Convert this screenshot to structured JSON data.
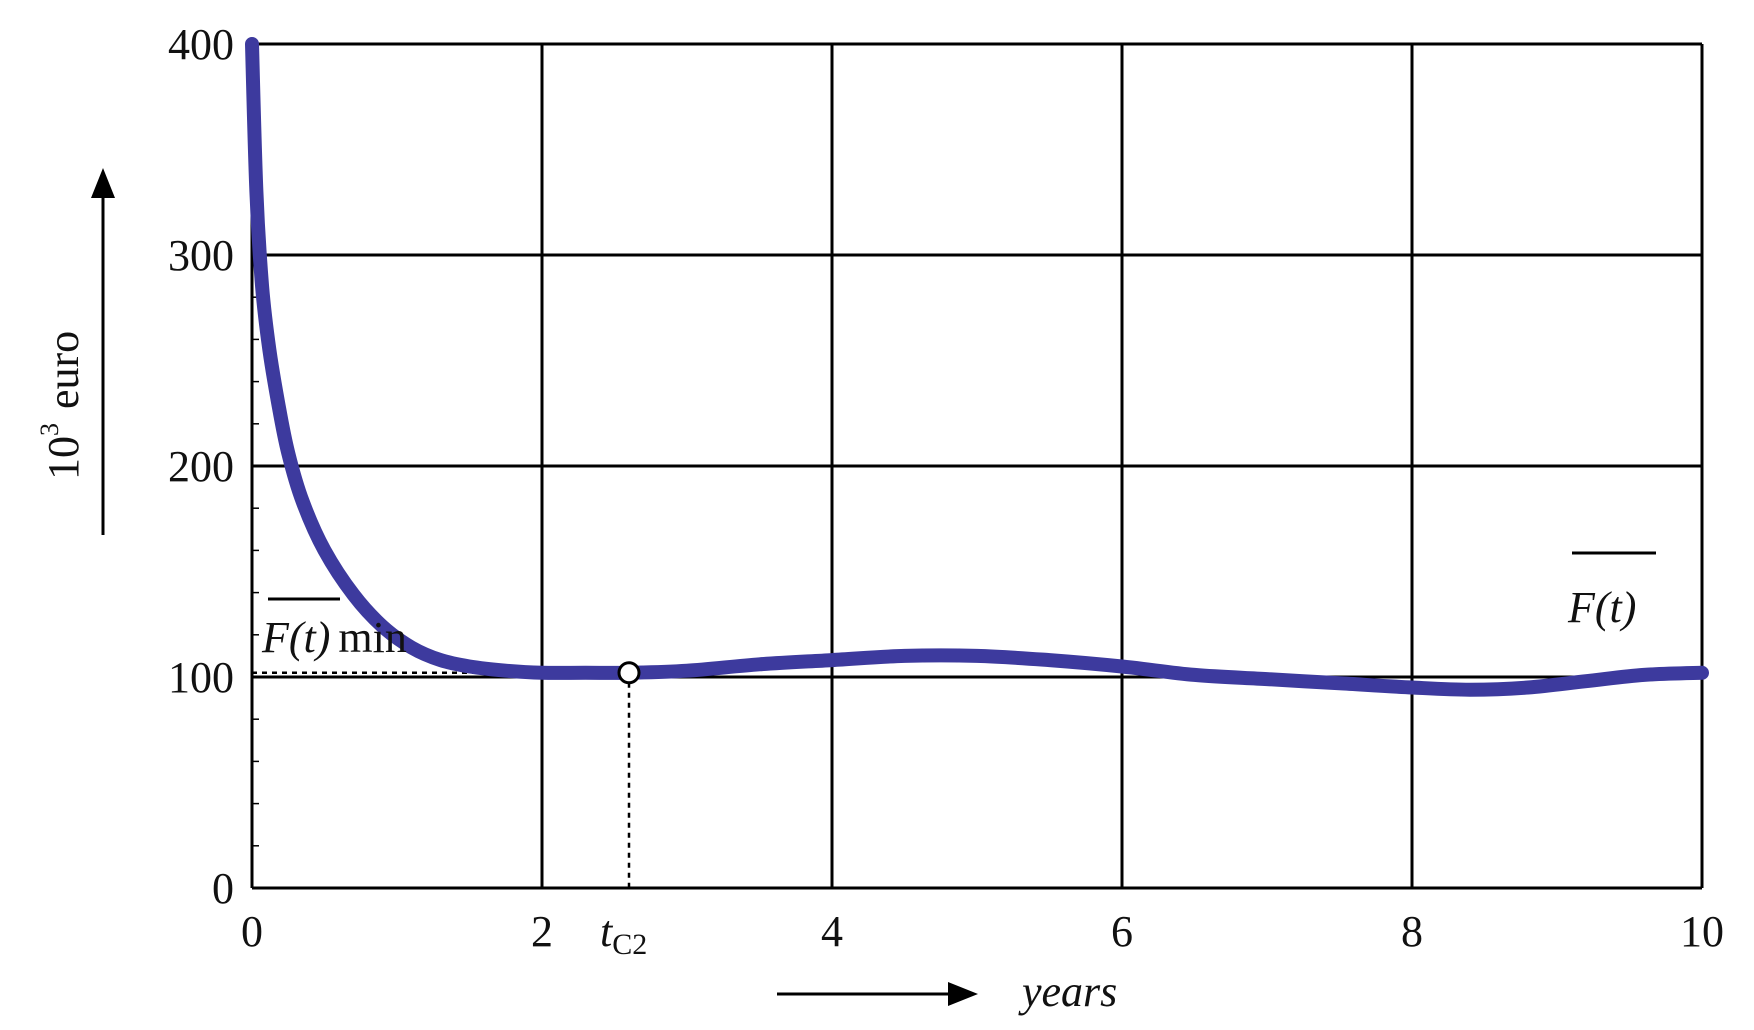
{
  "chart_data": {
    "type": "line",
    "xlabel": "years",
    "ylabel_main": "10",
    "ylabel_exp": "3",
    "ylabel_unit": "euro",
    "xlim": [
      0,
      10
    ],
    "ylim": [
      0,
      400
    ],
    "grid": true,
    "x_ticks": [
      0,
      2,
      4,
      6,
      8,
      10
    ],
    "x_tick_labels": [
      "0",
      "2",
      "4",
      "6",
      "8",
      "10"
    ],
    "y_ticks": [
      0,
      100,
      200,
      300,
      400
    ],
    "y_tick_labels": [
      "0",
      "100",
      "200",
      "300",
      "400"
    ],
    "series": [
      {
        "color": "#3d3a9e",
        "x": [
          0,
          0.03,
          0.07,
          0.12,
          0.18,
          0.25,
          0.35,
          0.5,
          0.7,
          0.9,
          1.1,
          1.3,
          1.5,
          1.75,
          2.0,
          2.3,
          2.6,
          3.0,
          3.5,
          4.0,
          4.5,
          5.0,
          5.5,
          6.0,
          6.5,
          7.0,
          7.5,
          8.0,
          8.4,
          8.8,
          9.2,
          9.6,
          10.0
        ],
        "y": [
          400,
          330,
          285,
          255,
          230,
          206,
          183,
          160,
          139,
          124,
          114,
          108,
          105,
          103,
          102,
          102,
          102,
          103,
          106,
          108,
          110,
          110,
          108,
          105,
          101,
          99,
          97,
          95,
          94,
          95,
          98,
          101,
          102
        ]
      }
    ],
    "min_point": {
      "x": 2.6,
      "y": 102
    },
    "annotations": {
      "curve_label": "F(t)",
      "min_label_main": "F(t)",
      "min_label_suffix": "min",
      "tc_main": "t",
      "tc_sub": "C2"
    }
  }
}
